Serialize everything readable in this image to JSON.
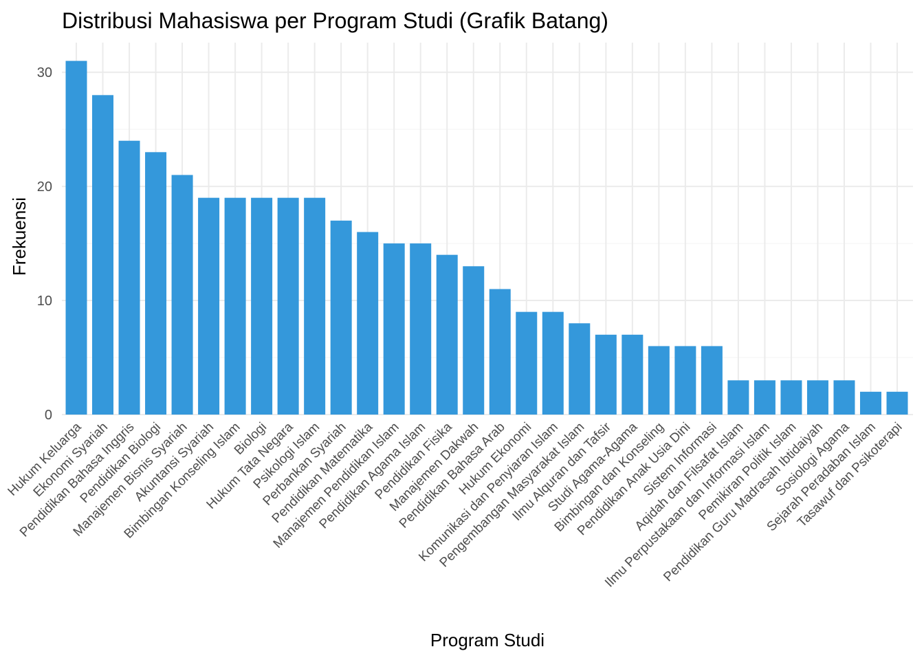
{
  "chart_data": {
    "type": "bar",
    "title": "Distribusi Mahasiswa per Program Studi (Grafik Batang)",
    "xlabel": "Program Studi",
    "ylabel": "Frekuensi",
    "ylim": [
      0,
      32.6
    ],
    "yticks": [
      0,
      10,
      20,
      30
    ],
    "grid": true,
    "bar_color": "#3498db",
    "categories": [
      "Hukum Keluarga",
      "Ekonomi Syariah",
      "Pendidikan Bahasa Inggris",
      "Pendidikan Biologi",
      "Manajemen Bisnis Syariah",
      "Akuntansi Syariah",
      "Bimbingan Konseling Islam",
      "Biologi",
      "Hukum Tata Negara",
      "Psikologi Islam",
      "Perbankan Syariah",
      "Pendidikan Matematika",
      "Manajemen Pendidikan Islam",
      "Pendidikan Agama Islam",
      "Pendidikan Fisika",
      "Manajemen Dakwah",
      "Pendidikan Bahasa Arab",
      "Hukum Ekonomi",
      "Komunikasi dan Penyiaran Islam",
      "Pengembangan Masyarakat Islam",
      "Ilmu Alquran dan Tafsir",
      "Studi Agama-Agama",
      "Bimbingan dan Konseling",
      "Pendidikan Anak Usia Dini",
      "Sistem Informasi",
      "Aqidah dan Filsafat Islam",
      "Ilmu Perpustakaan dan Informasi Islam",
      "Pemikiran Politik Islam",
      "Pendidikan Guru Madrasah Ibtidaiyah",
      "Sosiologi Agama",
      "Sejarah Peradaban Islam",
      "Tasawuf dan Psikoterapi"
    ],
    "values": [
      31,
      28,
      24,
      23,
      21,
      19,
      19,
      19,
      19,
      19,
      17,
      16,
      15,
      15,
      14,
      13,
      11,
      9,
      9,
      8,
      7,
      7,
      6,
      6,
      6,
      3,
      3,
      3,
      3,
      3,
      2,
      2
    ]
  }
}
